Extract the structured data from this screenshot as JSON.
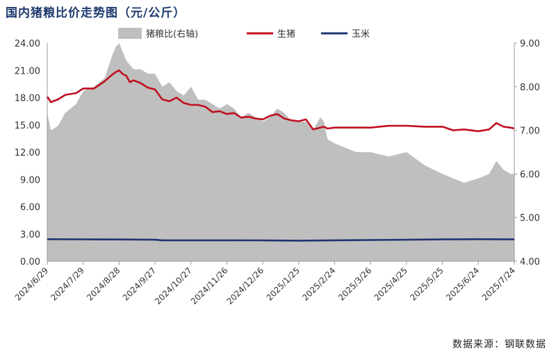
{
  "title": "国内猪粮比价走势图（元/公斤）",
  "source": "数据来源：钢联数据",
  "chart_data": {
    "type": "area",
    "title": "国内猪粮比价走势图（元/公斤）",
    "legend": {
      "placement": "top",
      "entries": [
        "猪粮比(右轴)",
        "生猪",
        "玉米"
      ]
    },
    "colors": {
      "ratio": "#bfbfbf",
      "hog": "#c0101e",
      "corn": "#1f3470"
    },
    "y_left": {
      "min": 0,
      "max": 24,
      "ticks": [
        "0.00",
        "3.00",
        "6.00",
        "9.00",
        "12.00",
        "15.00",
        "18.00",
        "21.00",
        "24.00"
      ]
    },
    "y_right": {
      "min": 4,
      "max": 9,
      "ticks": [
        "4.00",
        "5.00",
        "6.00",
        "7.00",
        "8.00",
        "9.00"
      ]
    },
    "x_labels": [
      "2024/6/29",
      "2024/7/29",
      "2024/8/28",
      "2024/9/27",
      "2024/10/27",
      "2024/11/26",
      "2024/12/26",
      "2025/1/25",
      "2025/2/24",
      "2025/3/26",
      "2025/4/25",
      "2025/5/25",
      "2025/6/24",
      "2025/7/24"
    ],
    "x_range": [
      0,
      13
    ],
    "series": [
      {
        "name": "猪粮比(右轴)",
        "axis": "right",
        "style": "area",
        "x": [
          0,
          0.1,
          0.3,
          0.5,
          0.8,
          1.0,
          1.3,
          1.6,
          1.8,
          1.9,
          2.0,
          2.1,
          2.2,
          2.3,
          2.4,
          2.6,
          2.8,
          3.0,
          3.2,
          3.4,
          3.6,
          3.8,
          4.0,
          4.2,
          4.4,
          4.6,
          4.8,
          5.0,
          5.2,
          5.4,
          5.6,
          5.8,
          6.0,
          6.2,
          6.4,
          6.6,
          6.8,
          7.0,
          7.2,
          7.4,
          7.6,
          7.7,
          7.8,
          8.0,
          8.3,
          8.6,
          9.0,
          9.5,
          10.0,
          10.5,
          11.0,
          11.3,
          11.6,
          12.0,
          12.3,
          12.5,
          12.7,
          12.9,
          13.0
        ],
        "values": [
          7.4,
          7.0,
          7.1,
          7.4,
          7.6,
          7.9,
          8.0,
          8.2,
          8.7,
          8.9,
          9.0,
          8.8,
          8.6,
          8.5,
          8.4,
          8.4,
          8.3,
          8.3,
          8.0,
          8.1,
          7.9,
          7.8,
          8.0,
          7.7,
          7.7,
          7.6,
          7.5,
          7.6,
          7.5,
          7.3,
          7.4,
          7.3,
          7.2,
          7.3,
          7.5,
          7.4,
          7.2,
          7.2,
          7.2,
          7.0,
          7.3,
          7.2,
          6.8,
          6.7,
          6.6,
          6.5,
          6.5,
          6.4,
          6.5,
          6.2,
          6.0,
          5.9,
          5.8,
          5.9,
          6.0,
          6.3,
          6.1,
          6.0,
          6.0
        ]
      },
      {
        "name": "生猪",
        "axis": "left",
        "style": "line",
        "x": [
          0,
          0.1,
          0.3,
          0.5,
          0.8,
          1.0,
          1.3,
          1.6,
          1.8,
          1.9,
          2.0,
          2.1,
          2.2,
          2.3,
          2.4,
          2.6,
          2.8,
          3.0,
          3.2,
          3.4,
          3.6,
          3.8,
          4.0,
          4.2,
          4.4,
          4.6,
          4.8,
          5.0,
          5.2,
          5.4,
          5.6,
          5.8,
          6.0,
          6.2,
          6.4,
          6.6,
          6.8,
          7.0,
          7.2,
          7.4,
          7.6,
          7.7,
          7.8,
          8.0,
          8.3,
          8.6,
          9.0,
          9.5,
          10.0,
          10.5,
          11.0,
          11.3,
          11.6,
          12.0,
          12.3,
          12.5,
          12.7,
          12.9,
          13.0
        ],
        "values": [
          18.1,
          17.5,
          17.8,
          18.3,
          18.5,
          19.0,
          19.0,
          19.8,
          20.5,
          20.8,
          21.0,
          20.6,
          20.4,
          19.7,
          19.9,
          19.6,
          19.1,
          18.9,
          17.8,
          17.6,
          18.0,
          17.4,
          17.2,
          17.2,
          17.0,
          16.4,
          16.5,
          16.2,
          16.3,
          15.8,
          15.9,
          15.7,
          15.6,
          16.0,
          16.2,
          15.7,
          15.5,
          15.4,
          15.6,
          14.5,
          14.7,
          14.8,
          14.6,
          14.7,
          14.7,
          14.7,
          14.7,
          14.9,
          14.9,
          14.8,
          14.8,
          14.4,
          14.5,
          14.3,
          14.5,
          15.2,
          14.8,
          14.7,
          14.6
        ]
      },
      {
        "name": "玉米",
        "axis": "left",
        "style": "line",
        "x": [
          0,
          1,
          2,
          3,
          3.2,
          4,
          5,
          6,
          7,
          8,
          9,
          10,
          11,
          12,
          13
        ],
        "values": [
          2.42,
          2.41,
          2.39,
          2.36,
          2.3,
          2.3,
          2.3,
          2.29,
          2.26,
          2.3,
          2.33,
          2.36,
          2.4,
          2.42,
          2.4
        ]
      }
    ]
  }
}
